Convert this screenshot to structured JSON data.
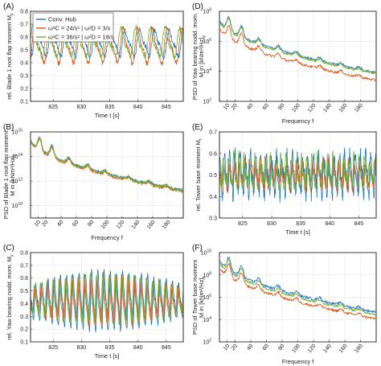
{
  "colors": {
    "conv": "#1f77b4",
    "a": "#d95319",
    "b": "#77ac30"
  },
  "chart_data": [
    {
      "id": "A",
      "panel_label": "(A)",
      "type": "line",
      "xlabel": "Time t [s]",
      "ylabel": "rel. Blade 1 root flap moment M",
      "ylabel_sub": "y",
      "x_range": [
        821,
        848
      ],
      "ylim": [
        0.1,
        0.8
      ],
      "xticks": [
        825,
        830,
        835,
        840,
        845
      ],
      "xtick_labels": [
        "825",
        "830",
        "835",
        "840",
        "845"
      ],
      "yticks": [
        0.1,
        0.2,
        0.3,
        0.4,
        0.5,
        0.6,
        0.7,
        0.8
      ],
      "ytick_labels": [
        "0.1",
        "0.2",
        "0.3",
        "0.4",
        "0.5",
        "0.6",
        "0.7",
        "0.8"
      ],
      "yscale": "linear",
      "grid": true,
      "series_style": [
        {
          "base": 0.55,
          "amp": 0.09,
          "per": 2.6,
          "noise": 0.02,
          "ph": 0.0
        },
        {
          "base": 0.53,
          "amp": 0.12,
          "per": 2.6,
          "noise": 0.02,
          "ph": 0.9
        },
        {
          "base": 0.55,
          "amp": 0.1,
          "per": 2.6,
          "noise": 0.02,
          "ph": 1.8
        }
      ],
      "legend": {
        "placement": "top-left",
        "entries": [
          {
            "color_key": "conv",
            "label": "Conv. Hub"
          },
          {
            "color_key": "a",
            "label": "ω²C = 24/s² | ω²D = 3/s"
          },
          {
            "color_key": "b",
            "label": "ω²C = 36/s² | ω²D = 18/s"
          }
        ]
      }
    },
    {
      "id": "B",
      "panel_label": "(B)",
      "type": "line",
      "xlabel": "Frequency f",
      "ylabel": "PSD of Blade 1 root flap moment",
      "ylabel2": "M in [kNm²/Hz]",
      "ylabel2_sub": "y",
      "x_range": [
        0,
        200
      ],
      "ylim_exp": [
        9,
        16
      ],
      "xticks": [
        10,
        20,
        40,
        60,
        80,
        100,
        120,
        140,
        160,
        180
      ],
      "xtick_labels": [
        "10",
        "20",
        "40",
        "60",
        "80",
        "100",
        "120",
        "140",
        "160",
        "180"
      ],
      "yticks_exp": [
        10,
        12,
        14,
        16
      ],
      "ytick_labels": [
        "10",
        "10",
        "10",
        "10"
      ],
      "ytick_sups": [
        "10",
        "12",
        "14",
        "16"
      ],
      "yscale": "log",
      "grid": true,
      "tick_rotation": -50,
      "series_style": [
        {
          "off": 0.0,
          "noise": 0.15
        },
        {
          "off": -0.05,
          "noise": 0.15
        },
        {
          "off": 0.0,
          "noise": 0.15
        }
      ]
    },
    {
      "id": "C",
      "panel_label": "(C)",
      "type": "line",
      "xlabel": "Time t [s]",
      "ylabel": "rel. Yaw bearing nodd. mom. M",
      "ylabel_sub": "y",
      "x_range": [
        821,
        848
      ],
      "ylim": [
        0.1,
        0.8
      ],
      "xticks": [
        825,
        830,
        835,
        840,
        845
      ],
      "xtick_labels": [
        "825",
        "830",
        "835",
        "840",
        "845"
      ],
      "yticks": [
        0.1,
        0.2,
        0.3,
        0.4,
        0.5,
        0.6,
        0.7,
        0.8
      ],
      "ytick_labels": [
        "0.1",
        "0.2",
        "0.3",
        "0.4",
        "0.5",
        "0.6",
        "0.7",
        "0.8"
      ],
      "yscale": "linear",
      "grid": true,
      "series_style": [
        {
          "base": 0.42,
          "amp": 0.2,
          "per": 1.1,
          "noise": 0.02,
          "ph": 0.0,
          "grow": true
        },
        {
          "base": 0.42,
          "amp": 0.16,
          "per": 1.1,
          "noise": 0.02,
          "ph": 0.7,
          "grow": true
        },
        {
          "base": 0.42,
          "amp": 0.17,
          "per": 1.1,
          "noise": 0.02,
          "ph": 1.4,
          "grow": true
        }
      ]
    },
    {
      "id": "D",
      "panel_label": "(D)",
      "type": "line",
      "xlabel": "Frequency f",
      "ylabel": "PSD of Yaw bearing nodd. mom.",
      "ylabel2": "M in [kNm²/Hz]",
      "ylabel2_sub": "y",
      "x_range": [
        0,
        200
      ],
      "ylim_exp": [
        2,
        8
      ],
      "xticks": [
        10,
        20,
        40,
        60,
        80,
        100,
        120,
        140,
        160,
        180
      ],
      "xtick_labels": [
        "10",
        "20",
        "40",
        "60",
        "80",
        "100",
        "120",
        "140",
        "160",
        "180"
      ],
      "yticks_exp": [
        2,
        4,
        6,
        8
      ],
      "ytick_labels": [
        "10",
        "10",
        "10",
        "10"
      ],
      "ytick_sups": [
        "2",
        "4",
        "6",
        "8"
      ],
      "yscale": "log",
      "grid": true,
      "tick_rotation": -50,
      "series_style": [
        {
          "off": 0.0,
          "noise": 0.12
        },
        {
          "off": -0.35,
          "noise": 0.12
        },
        {
          "off": -0.05,
          "noise": 0.12
        }
      ]
    },
    {
      "id": "E",
      "panel_label": "(E)",
      "type": "line",
      "xlabel": "Time t [s]",
      "ylabel": "rel. Tower base moment M",
      "ylabel_sub": "t",
      "x_range": [
        821,
        848
      ],
      "ylim": [
        0.3,
        0.7
      ],
      "xticks": [
        825,
        830,
        835,
        840,
        845
      ],
      "xtick_labels": [
        "825",
        "830",
        "835",
        "840",
        "845"
      ],
      "yticks": [
        0.3,
        0.4,
        0.5,
        0.6,
        0.7
      ],
      "ytick_labels": [
        "0.3",
        "0.4",
        "0.5",
        "0.6",
        "0.7"
      ],
      "yscale": "linear",
      "grid": true,
      "series_style": [
        {
          "base": 0.5,
          "amp": 0.08,
          "per": 0.9,
          "noise": 0.04,
          "ph": 0.0
        },
        {
          "base": 0.5,
          "amp": 0.05,
          "per": 0.9,
          "noise": 0.025,
          "ph": 0.8
        },
        {
          "base": 0.51,
          "amp": 0.06,
          "per": 0.9,
          "noise": 0.03,
          "ph": 1.6
        }
      ]
    },
    {
      "id": "F",
      "panel_label": "(F)",
      "type": "line",
      "xlabel": "Frequency f",
      "ylabel": "PSD of Tower base moment",
      "ylabel2": "M in [kNm²/Hz]",
      "ylabel2_sub": "t",
      "x_range": [
        0,
        200
      ],
      "ylim_exp": [
        2,
        10
      ],
      "xticks": [
        10,
        20,
        40,
        60,
        80,
        100,
        120,
        140,
        160,
        180
      ],
      "xtick_labels": [
        "10",
        "20",
        "40",
        "60",
        "80",
        "100",
        "120",
        "140",
        "160",
        "180"
      ],
      "yticks_exp": [
        2,
        4,
        6,
        8,
        10
      ],
      "ytick_labels": [
        "10",
        "10",
        "10",
        "10",
        "10"
      ],
      "ytick_sups": [
        "2",
        "4",
        "6",
        "8",
        "10"
      ],
      "yscale": "log",
      "grid": true,
      "tick_rotation": -50,
      "series_style": [
        {
          "off": 0.05,
          "noise": 0.12
        },
        {
          "off": -0.25,
          "noise": 0.12
        },
        {
          "off": -0.05,
          "noise": 0.12
        }
      ]
    }
  ]
}
